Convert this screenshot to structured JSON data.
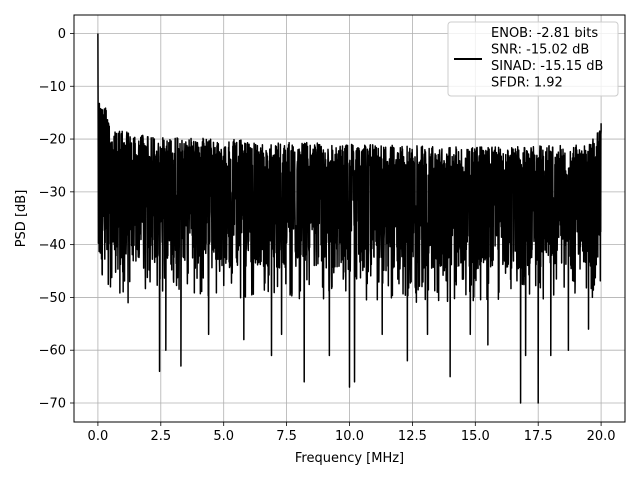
{
  "chart_data": {
    "type": "line",
    "xlabel": "Frequency [MHz]",
    "ylabel": "PSD [dB]",
    "xlim": [
      -0.95,
      20.95
    ],
    "ylim": [
      -73.6,
      3.5
    ],
    "xticks": [
      0.0,
      2.5,
      5.0,
      7.5,
      10.0,
      12.5,
      15.0,
      17.5,
      20.0
    ],
    "xtick_labels": [
      "0.0",
      "2.5",
      "5.0",
      "7.5",
      "10.0",
      "12.5",
      "15.0",
      "17.5",
      "20.0"
    ],
    "yticks": [
      0,
      -10,
      -20,
      -30,
      -40,
      -50,
      -60,
      -70
    ],
    "ytick_labels": [
      "0",
      "−10",
      "−20",
      "−30",
      "−40",
      "−50",
      "−60",
      "−70"
    ],
    "grid": true,
    "legend_position": "top-right",
    "line_color": "#000000",
    "legend": {
      "lines": [
        "ENOB: -2.81 bits",
        "SNR: -15.02 dB",
        "SINAD: -15.15 dB",
        "SFDR: 1.92"
      ]
    },
    "series": [
      {
        "description": "dense noisy PSD trace",
        "x_range": [
          0,
          20
        ],
        "dc_peak": {
          "x": 0.0,
          "y": 0.0
        },
        "upper_envelope": [
          [
            0.2,
            -12
          ],
          [
            0.5,
            -18
          ],
          [
            2.0,
            -19.5
          ],
          [
            5.0,
            -20
          ],
          [
            10.0,
            -21
          ],
          [
            15.0,
            -21.5
          ],
          [
            19.5,
            -21
          ],
          [
            20.0,
            -17
          ]
        ],
        "lower_envelope": [
          [
            0.2,
            -44
          ],
          [
            2.0,
            -43
          ],
          [
            5.0,
            -44
          ],
          [
            10.0,
            -45
          ],
          [
            15.0,
            -45
          ],
          [
            20.0,
            -44
          ]
        ],
        "deep_notches": [
          [
            0.5,
            -48
          ],
          [
            1.2,
            -51
          ],
          [
            2.45,
            -64
          ],
          [
            2.7,
            -60
          ],
          [
            3.3,
            -63
          ],
          [
            4.4,
            -57
          ],
          [
            5.8,
            -58
          ],
          [
            6.9,
            -61
          ],
          [
            7.3,
            -57
          ],
          [
            8.2,
            -66
          ],
          [
            9.2,
            -61
          ],
          [
            10.0,
            -67
          ],
          [
            10.2,
            -66
          ],
          [
            11.3,
            -57
          ],
          [
            12.3,
            -62
          ],
          [
            13.1,
            -57
          ],
          [
            14.0,
            -65
          ],
          [
            14.8,
            -57
          ],
          [
            15.5,
            -59
          ],
          [
            16.8,
            -70
          ],
          [
            17.0,
            -61
          ],
          [
            17.5,
            -70
          ],
          [
            18.0,
            -61
          ],
          [
            18.7,
            -60
          ],
          [
            19.5,
            -56
          ]
        ]
      }
    ]
  }
}
